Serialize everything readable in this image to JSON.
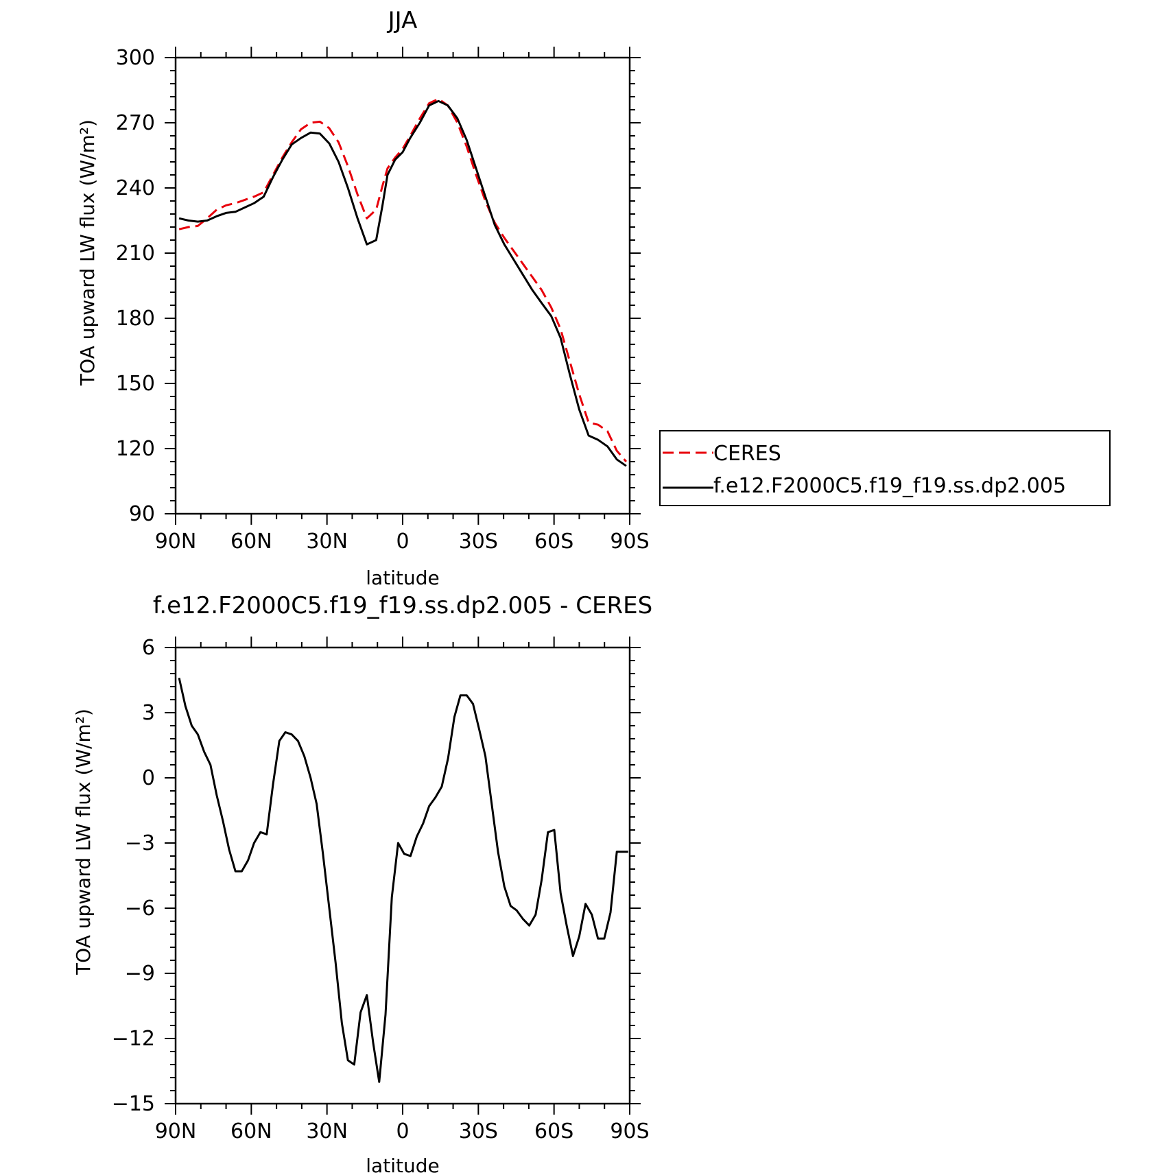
{
  "chart_data": [
    {
      "type": "line",
      "title": "JJA",
      "xlabel": "latitude",
      "ylabel": "TOA upward LW flux (W/m²)",
      "xlim": [
        90,
        -90
      ],
      "ylim": [
        90,
        300
      ],
      "xticks": [
        90,
        60,
        30,
        0,
        -30,
        -60,
        -90
      ],
      "xtick_labels": [
        "90N",
        "60N",
        "30N",
        "0",
        "30S",
        "60S",
        "90S"
      ],
      "yticks": [
        90,
        120,
        150,
        180,
        210,
        240,
        270,
        300
      ],
      "ytick_labels": [
        "90",
        "120",
        "150",
        "180",
        "210",
        "240",
        "270",
        "300"
      ],
      "grid": false,
      "legend_position": "outside-right",
      "series": [
        {
          "name": "CERES",
          "color": "#e8000b",
          "dash": "dashed",
          "x": [
            88.6,
            84.9,
            81.2,
            77.5,
            73.7,
            70.0,
            66.3,
            62.6,
            58.9,
            55.1,
            51.4,
            47.7,
            44.0,
            40.3,
            36.5,
            32.8,
            29.1,
            25.4,
            21.7,
            17.9,
            14.2,
            10.5,
            8.0,
            6.0,
            3.0,
            0.0,
            -3.0,
            -6.8,
            -10.5,
            -14.2,
            -17.9,
            -21.7,
            -25.4,
            -29.1,
            -32.8,
            -36.5,
            -40.3,
            -44.0,
            -47.7,
            -51.4,
            -55.1,
            -58.9,
            -62.6,
            -66.3,
            -70.0,
            -73.7,
            -77.5,
            -81.2,
            -84.9,
            -88.6
          ],
          "y": [
            221,
            222,
            222.5,
            226,
            230,
            232,
            233,
            234.5,
            236,
            238,
            246,
            254,
            261,
            267,
            270,
            270.5,
            267.5,
            261,
            250,
            237,
            226,
            230,
            241,
            249,
            254,
            258,
            264,
            272,
            279,
            281,
            278,
            270,
            259,
            246,
            234,
            224,
            217,
            211,
            205,
            199,
            193,
            185,
            175,
            160,
            145,
            132,
            131,
            128,
            119,
            114
          ]
        },
        {
          "name": "f.e12.F2000C5.f19_f19.ss.dp2.005",
          "color": "#000000",
          "dash": "solid",
          "x": [
            88.6,
            84.9,
            81.2,
            77.5,
            73.7,
            70.0,
            66.3,
            62.6,
            58.9,
            55.1,
            51.4,
            47.7,
            44.0,
            40.3,
            36.5,
            32.8,
            29.1,
            25.4,
            21.7,
            17.9,
            14.2,
            10.5,
            8.0,
            6.0,
            3.0,
            0.0,
            -3.0,
            -6.8,
            -10.5,
            -14.2,
            -17.9,
            -21.7,
            -25.4,
            -29.1,
            -32.8,
            -36.5,
            -40.3,
            -44.0,
            -47.7,
            -51.4,
            -55.1,
            -58.9,
            -62.6,
            -66.3,
            -70.0,
            -73.7,
            -77.5,
            -81.2,
            -84.9,
            -88.6
          ],
          "y": [
            226,
            225,
            224.5,
            225,
            227,
            228.5,
            229,
            231,
            233,
            236,
            245,
            253,
            260,
            263,
            265.5,
            265,
            260.5,
            252,
            240,
            226,
            214,
            216,
            232,
            246,
            253,
            256.5,
            263,
            270,
            278,
            280,
            278,
            272,
            262,
            249,
            236,
            223,
            214,
            207,
            200,
            193,
            187,
            181,
            171,
            154,
            138,
            126,
            124,
            121,
            115,
            112
          ]
        }
      ]
    },
    {
      "type": "line",
      "title": "f.e12.F2000C5.f19_f19.ss.dp2.005 - CERES",
      "xlabel": "latitude",
      "ylabel": "TOA upward LW flux (W/m²)",
      "xlim": [
        90,
        -90
      ],
      "ylim": [
        -15,
        6
      ],
      "xticks": [
        90,
        60,
        30,
        0,
        -30,
        -60,
        -90
      ],
      "xtick_labels": [
        "90N",
        "60N",
        "30N",
        "0",
        "30S",
        "60S",
        "90S"
      ],
      "yticks": [
        -15,
        -12,
        -9,
        -6,
        -3,
        0,
        3,
        6
      ],
      "ytick_labels": [
        "−15",
        "−12",
        "−9",
        "−6",
        "−3",
        "0",
        "3",
        "6"
      ],
      "grid": false,
      "series": [
        {
          "color": "#000000",
          "dash": "solid",
          "x": [
            88.6,
            86.1,
            83.6,
            81.2,
            78.7,
            76.2,
            73.7,
            71.2,
            68.8,
            66.3,
            63.8,
            61.3,
            58.9,
            56.4,
            53.9,
            51.4,
            48.9,
            46.5,
            44.0,
            41.5,
            39.0,
            36.5,
            34.1,
            31.6,
            29.1,
            26.6,
            24.1,
            21.7,
            19.2,
            16.7,
            14.2,
            11.7,
            9.3,
            6.8,
            4.3,
            1.8,
            -0.6,
            -3.1,
            -5.6,
            -8.1,
            -10.5,
            -13.0,
            -15.5,
            -18.0,
            -20.5,
            -22.9,
            -25.4,
            -27.9,
            -30.4,
            -32.8,
            -35.3,
            -37.8,
            -40.3,
            -42.8,
            -45.2,
            -47.7,
            -50.2,
            -52.7,
            -55.1,
            -57.6,
            -60.1,
            -62.6,
            -65.0,
            -67.5,
            -70.0,
            -72.5,
            -75.0,
            -77.4,
            -79.9,
            -82.4,
            -84.9,
            -87.4,
            -89.4
          ],
          "y": [
            4.6,
            3.3,
            2.4,
            2.0,
            1.2,
            0.6,
            -0.8,
            -2.0,
            -3.3,
            -4.3,
            -4.3,
            -3.8,
            -3.0,
            -2.5,
            -2.6,
            -0.3,
            1.7,
            2.1,
            2.0,
            1.7,
            1.0,
            0.0,
            -1.2,
            -3.5,
            -6.0,
            -8.5,
            -11.3,
            -13.0,
            -13.2,
            -10.8,
            -10.0,
            -12.2,
            -14.0,
            -10.9,
            -5.5,
            -3.0,
            -3.5,
            -3.6,
            -2.7,
            -2.1,
            -1.3,
            -0.9,
            -0.4,
            0.9,
            2.8,
            3.8,
            3.8,
            3.4,
            2.2,
            1.0,
            -1.2,
            -3.4,
            -5.0,
            -5.9,
            -6.1,
            -6.5,
            -6.8,
            -6.3,
            -4.7,
            -2.5,
            -2.4,
            -5.3,
            -6.8,
            -8.2,
            -7.3,
            -5.8,
            -6.3,
            -7.4,
            -7.4,
            -6.2,
            -3.4,
            -3.4,
            -3.4
          ]
        }
      ]
    }
  ],
  "legend": {
    "entries": [
      {
        "label": "CERES",
        "color": "#e8000b",
        "dash": "dashed"
      },
      {
        "label": "f.e12.F2000C5.f19_f19.ss.dp2.005",
        "color": "#000000",
        "dash": "solid"
      }
    ]
  }
}
